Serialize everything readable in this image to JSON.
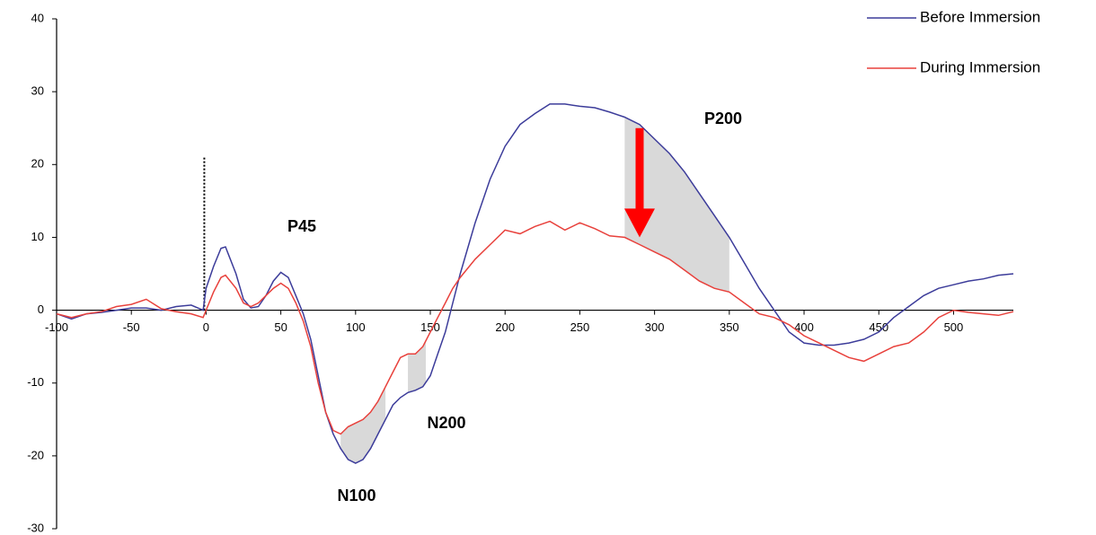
{
  "chart_data": {
    "type": "line",
    "annotations": [
      "P45",
      "N100",
      "N200",
      "P200"
    ],
    "x": [
      -100,
      -90,
      -80,
      -70,
      -60,
      -50,
      -40,
      -30,
      -20,
      -10,
      -2,
      0,
      5,
      10,
      13,
      20,
      25,
      30,
      35,
      40,
      45,
      50,
      55,
      60,
      65,
      70,
      75,
      80,
      85,
      90,
      95,
      100,
      105,
      110,
      115,
      120,
      125,
      130,
      135,
      140,
      145,
      150,
      155,
      160,
      165,
      170,
      180,
      190,
      200,
      210,
      220,
      230,
      240,
      250,
      260,
      270,
      280,
      290,
      300,
      310,
      320,
      330,
      340,
      350,
      360,
      370,
      380,
      390,
      400,
      410,
      420,
      430,
      440,
      450,
      460,
      470,
      480,
      490,
      500,
      510,
      520,
      530,
      540
    ],
    "series": [
      {
        "name": "Before Immersion",
        "color": "#3c3c9a",
        "values": [
          -0.5,
          -1.2,
          -0.5,
          -0.3,
          0,
          0.3,
          0.3,
          0,
          0.5,
          0.7,
          0,
          3,
          6,
          8.5,
          8.7,
          5,
          1.5,
          0.3,
          0.5,
          2,
          4,
          5.2,
          4.5,
          2,
          -0.5,
          -4,
          -9,
          -14,
          -17,
          -19,
          -20.5,
          -21,
          -20.5,
          -19,
          -17,
          -15,
          -13,
          -12,
          -11.3,
          -11,
          -10.5,
          -9,
          -6,
          -3,
          1,
          5,
          12,
          18,
          22.5,
          25.5,
          27,
          28.3,
          28.3,
          28,
          27.8,
          27.2,
          26.5,
          25.5,
          23.5,
          21.5,
          19,
          16,
          13,
          10,
          6.5,
          3,
          0,
          -3,
          -4.5,
          -4.8,
          -4.8,
          -4.5,
          -4,
          -3,
          -1,
          0.5,
          2,
          3,
          3.5,
          4,
          4.3,
          4.8,
          5
        ]
      },
      {
        "name": "During Immersion",
        "color": "#e8413c",
        "values": [
          -0.5,
          -1,
          -0.5,
          -0.2,
          0.5,
          0.8,
          1.5,
          0.2,
          -0.2,
          -0.5,
          -1,
          0,
          2.5,
          4.5,
          4.8,
          3,
          1,
          0.5,
          1,
          2,
          3,
          3.7,
          3,
          1,
          -1.5,
          -5,
          -10,
          -14,
          -16.5,
          -17,
          -16,
          -15.5,
          -15,
          -14,
          -12.5,
          -10.5,
          -8.5,
          -6.5,
          -6,
          -6,
          -5,
          -3,
          -1,
          1,
          3,
          4.5,
          7,
          9,
          11,
          10.5,
          11.5,
          12.2,
          11,
          12,
          11.2,
          10.2,
          10,
          9,
          8,
          7,
          5.5,
          4,
          3,
          2.5,
          1,
          -0.5,
          -1,
          -2,
          -3.5,
          -4.5,
          -5.5,
          -6.5,
          -7,
          -6,
          -5,
          -4.5,
          -3,
          -1,
          0,
          -0.3,
          -0.5,
          -0.7,
          -0.2
        ]
      }
    ],
    "shaded_x": [
      [
        90,
        120
      ],
      [
        135,
        147
      ],
      [
        280,
        350
      ]
    ],
    "shade_color": "#d9d9d9",
    "event_line": {
      "x": 0,
      "y": 21
    },
    "arrow": {
      "x": 290,
      "from": 25,
      "to": 10,
      "color": "#ff0000"
    },
    "xlim": [
      -100,
      540
    ],
    "ylim": [
      -30,
      40
    ],
    "xticks": [
      -100,
      -50,
      0,
      50,
      100,
      150,
      200,
      250,
      300,
      350,
      400,
      450,
      500
    ],
    "yticks": [
      -30,
      -20,
      -10,
      0,
      10,
      20,
      30,
      40
    ],
    "legend": "upper right"
  }
}
